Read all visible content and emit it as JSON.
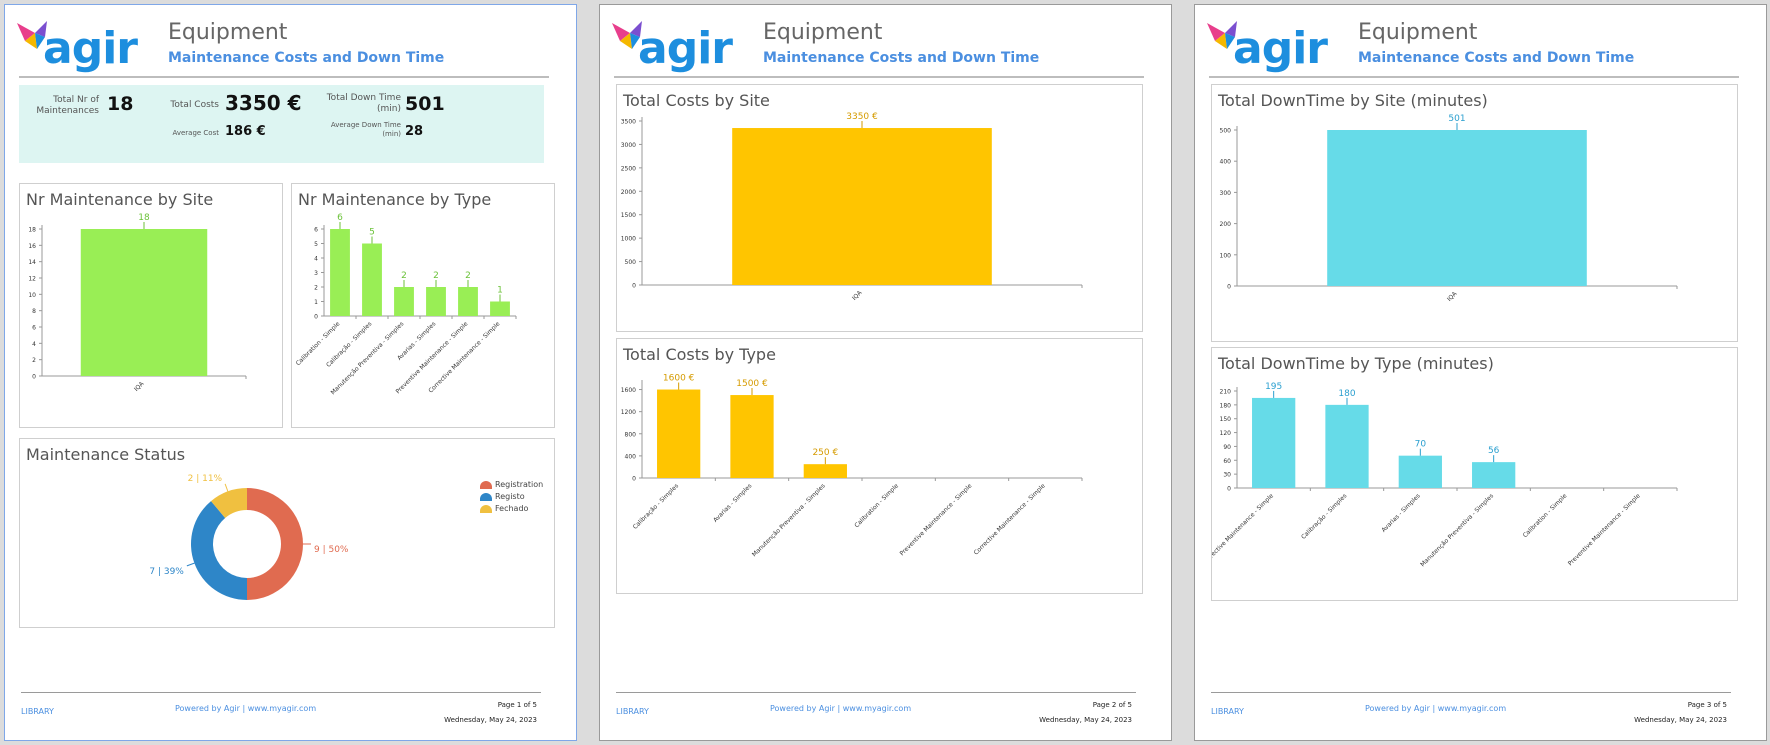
{
  "report": {
    "logo_text": "agir",
    "title": "Equipment",
    "subtitle": "Maintenance Costs and Down Time",
    "footer_library": "LIBRARY",
    "footer_powered": "Powered by  Agir  |  www.myagir.com",
    "footer_date": "Wednesday, May 24, 2023",
    "pages": [
      "Page 1 of 5",
      "Page 2 of 5",
      "Page 3 of 5"
    ]
  },
  "kpi": {
    "total_nr_label": "Total Nr of Maintenances",
    "total_nr_value": "18",
    "total_costs_label": "Total Costs",
    "total_costs_value": "3350 €",
    "avg_cost_label": "Average Cost",
    "avg_cost_value": "186 €",
    "total_down_label": "Total Down Time (min)",
    "total_down_value": "501",
    "avg_down_label": "Average Down Time (min)",
    "avg_down_value": "28"
  },
  "colors": {
    "green": "#99ee55",
    "green_label": "#6cc23a",
    "yellow": "#ffc500",
    "yellow_label": "#d59b00",
    "cyan": "#66dbe8",
    "cyan_label": "#2a9fcf",
    "red": "#e06b50",
    "blue": "#2e86c8",
    "gold": "#f0c040"
  },
  "chart_data": [
    {
      "id": "nr-by-site",
      "type": "bar",
      "title": "Nr Maintenance by Site",
      "categories": [
        "IQA"
      ],
      "values": [
        18
      ],
      "labels": [
        "18"
      ],
      "ylim": [
        0,
        18
      ],
      "yticks": [
        0,
        2,
        4,
        6,
        8,
        10,
        12,
        14,
        16,
        18
      ]
    },
    {
      "id": "nr-by-type",
      "type": "bar",
      "title": "Nr Maintenance by Type",
      "categories": [
        "Calibration - Simple",
        "Calibração - Simples",
        "Manutenção Preventiva - Simples",
        "Avarias - Simples",
        "Preventive Maintenance - Simple",
        "Corrective Maintenance - Simple"
      ],
      "values": [
        6,
        5,
        2,
        2,
        2,
        1
      ],
      "labels": [
        "6",
        "5",
        "2",
        "2",
        "2",
        "1"
      ],
      "ylim": [
        0,
        6
      ],
      "yticks": [
        0,
        1,
        2,
        3,
        4,
        5,
        6
      ]
    },
    {
      "id": "maintenance-status",
      "type": "pie",
      "title": "Maintenance Status",
      "categories": [
        "Registration",
        "Registo",
        "Fechado"
      ],
      "values": [
        9,
        7,
        2
      ],
      "percent": [
        50,
        39,
        11
      ],
      "slice_labels": [
        "9  |  50%",
        "7  |  39%",
        "2  |  11%"
      ]
    },
    {
      "id": "costs-by-site",
      "type": "bar",
      "title": "Total Costs by Site",
      "categories": [
        "IQA"
      ],
      "values": [
        3350
      ],
      "labels": [
        "3350 €"
      ],
      "ylim": [
        0,
        3500
      ],
      "yticks": [
        0,
        500,
        1000,
        1500,
        2000,
        2500,
        3000,
        3500
      ]
    },
    {
      "id": "costs-by-type",
      "type": "bar",
      "title": "Total Costs by Type",
      "categories": [
        "Calibração - Simples",
        "Avarias - Simples",
        "Manutenção Preventiva - Simples",
        "Calibration - Simple",
        "Preventive Maintenance - Simple",
        "Corrective Maintenance - Simple"
      ],
      "values": [
        1600,
        1500,
        250,
        0,
        0,
        0
      ],
      "labels": [
        "1600 €",
        "1500 €",
        "250 €",
        "",
        "",
        ""
      ],
      "ylim": [
        0,
        1700
      ],
      "yticks": [
        0,
        400,
        800,
        1200,
        1600
      ]
    },
    {
      "id": "down-by-site",
      "type": "bar",
      "title": "Total DownTime by Site (minutes)",
      "categories": [
        "IQA"
      ],
      "values": [
        501
      ],
      "labels": [
        "501"
      ],
      "ylim": [
        0,
        500
      ],
      "yticks": [
        0,
        100,
        200,
        300,
        400,
        500
      ]
    },
    {
      "id": "down-by-type",
      "type": "bar",
      "title": "Total DownTime by Type (minutes)",
      "categories": [
        "Corrective Maintenance - Simple",
        "Calibração - Simples",
        "Avarias - Simples",
        "Manutenção Preventiva - Simples",
        "Calibration - Simple",
        "Preventive Maintenance - Simple"
      ],
      "values": [
        195,
        180,
        70,
        56,
        0,
        0
      ],
      "labels": [
        "195",
        "180",
        "70",
        "56",
        "",
        ""
      ],
      "ylim": [
        0,
        210
      ],
      "yticks": [
        0,
        30,
        60,
        90,
        120,
        150,
        180,
        210
      ]
    }
  ]
}
